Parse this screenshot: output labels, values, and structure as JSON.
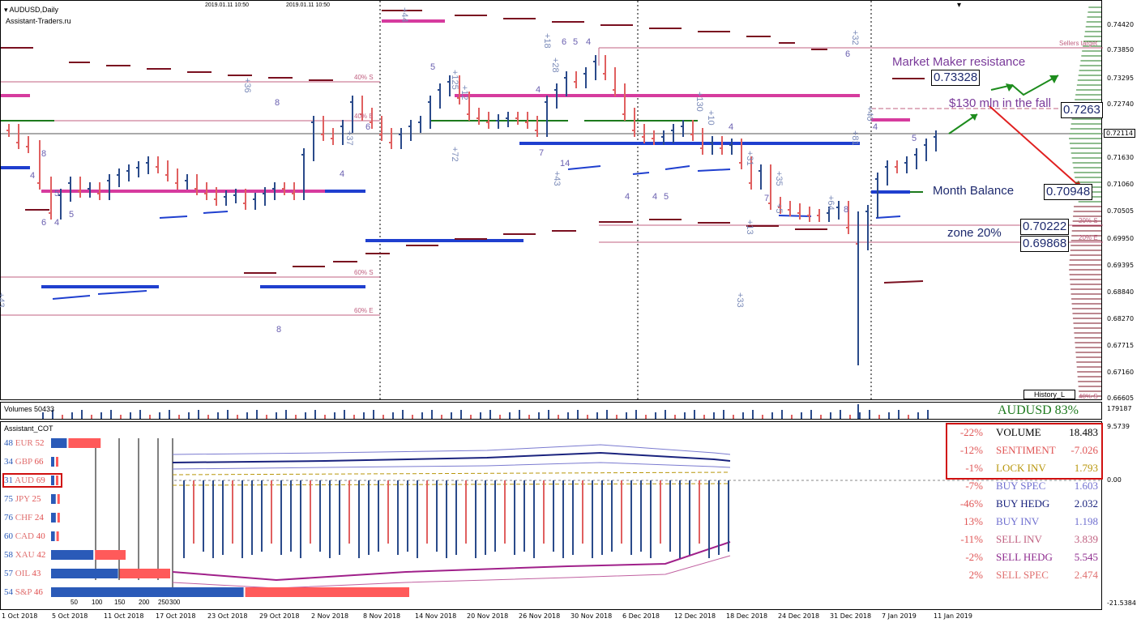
{
  "chart": {
    "symbol_title": "AUDUSD,Daily",
    "source": "Assistant-Traders.ru",
    "header_times": [
      "2019.01.11 10:50",
      "2019.01.11 10:50"
    ],
    "current_price": "0.72114",
    "price_axis": [
      "0.74420",
      "0.73850",
      "0.73295",
      "0.72740",
      "0.72114",
      "0.71630",
      "0.71060",
      "0.70505",
      "0.69950",
      "0.69395",
      "0.68840",
      "0.68270",
      "0.67715",
      "0.67160",
      "0.66605"
    ],
    "date_axis": [
      "1 Oct 2018",
      "5 Oct 2018",
      "11 Oct 2018",
      "17 Oct 2018",
      "23 Oct 2018",
      "29 Oct 2018",
      "2 Nov 2018",
      "8 Nov 2018",
      "14 Nov 2018",
      "20 Nov 2018",
      "26 Nov 2018",
      "30 Nov 2018",
      "6 Dec 2018",
      "12 Dec 2018",
      "18 Dec 2018",
      "24 Dec 2018",
      "31 Dec 2018",
      "7 Jan 2019",
      "11 Jan 2019"
    ],
    "annotations": {
      "mm_resistance": "Market Maker resistance",
      "mm_resistance_val": "0.73328",
      "fall_note": "$130 mln in the fall",
      "fall_val": "0.7263",
      "month_balance": "Month Balance",
      "month_balance_val": "0.70948",
      "zone_val1": "0.70222",
      "zone_label": "zone 20%",
      "zone_val2": "0.69868",
      "sellers_target": "Sellers target",
      "history": "History_L",
      "pct_tags": [
        "40% S",
        "40% E",
        "60% S",
        "60% E",
        "20% S",
        "20% E",
        "40% S"
      ]
    },
    "candle_labels": [
      "8",
      "4",
      "5",
      "6",
      "4",
      "5",
      "+43",
      "+36",
      "8",
      "+37",
      "6",
      "4",
      "+72",
      "7",
      "+44",
      "8",
      "+125",
      "+12",
      "4",
      "5",
      "+18",
      "6",
      "5",
      "4",
      "+28",
      "14",
      "+43",
      "+10",
      "4",
      "+130",
      "+31",
      "7",
      "4",
      "4",
      "5",
      "+35",
      "+64",
      "8",
      "+81",
      "+40",
      "+32",
      "6",
      "5",
      "+33",
      "+13",
      "4",
      "+5"
    ]
  },
  "volume": {
    "label": "Volumes 50433",
    "header": "AUDUSD 83%",
    "axis": "179187"
  },
  "cot": {
    "title": "Assistant_COT",
    "rows": [
      {
        "left": "48",
        "name": "EUR",
        "right": "52"
      },
      {
        "left": "34",
        "name": "GBP",
        "right": "66"
      },
      {
        "left": "31",
        "name": "AUD",
        "right": "69"
      },
      {
        "left": "75",
        "name": "JPY",
        "right": "25"
      },
      {
        "left": "76",
        "name": "CHF",
        "right": "24"
      },
      {
        "left": "60",
        "name": "CAD",
        "right": "40"
      },
      {
        "left": "58",
        "name": "XAU",
        "right": "42"
      },
      {
        "left": "57",
        "name": "OIL",
        "right": "43"
      },
      {
        "left": "54",
        "name": "S&P",
        "right": "46"
      }
    ],
    "scale": [
      "50",
      "100",
      "150",
      "200",
      "250",
      "300"
    ],
    "axis_top": "9.5739",
    "axis_zero": "0.00",
    "axis_bottom": "-21.5384",
    "stats": [
      {
        "pct": "-22%",
        "name": "VOLUME",
        "val": "18.483"
      },
      {
        "pct": "-12%",
        "name": "SENTIMENT",
        "val": "-7.026"
      },
      {
        "pct": "-1%",
        "name": "LOCK INV",
        "val": "1.793"
      },
      {
        "pct": "-7%",
        "name": "BUY SPEC",
        "val": "1.603"
      },
      {
        "pct": "-46%",
        "name": "BUY HEDG",
        "val": "2.032"
      },
      {
        "pct": "13%",
        "name": "BUY INV",
        "val": "1.198"
      },
      {
        "pct": "-11%",
        "name": "SELL INV",
        "val": "3.839"
      },
      {
        "pct": "-2%",
        "name": "SELL HEDG",
        "val": "5.545"
      },
      {
        "pct": "2%",
        "name": "SELL SPEC",
        "val": "2.474"
      }
    ],
    "stat_colors": [
      "#000000",
      "#e05555",
      "#b8960a",
      "#7070d0",
      "#1a237e",
      "#7070d0",
      "#c06080",
      "#8e2a8e",
      "#e07070"
    ]
  }
}
